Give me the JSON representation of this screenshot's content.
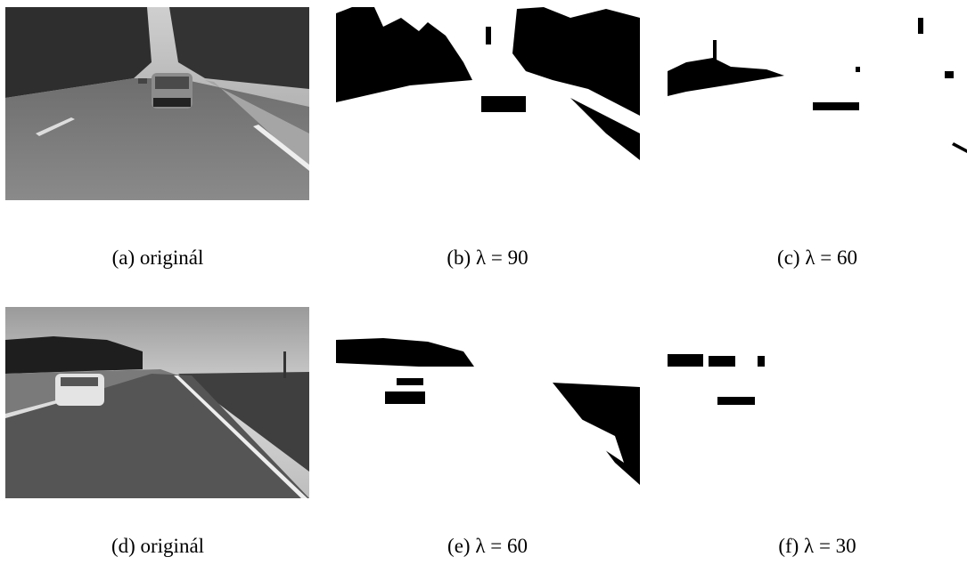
{
  "figures": [
    {
      "caption": "(a) originál"
    },
    {
      "caption": "(b) λ = 90"
    },
    {
      "caption": "(c) λ = 60"
    },
    {
      "caption": "(d) originál"
    },
    {
      "caption": "(e) λ = 60"
    },
    {
      "caption": "(f) λ = 30"
    }
  ]
}
